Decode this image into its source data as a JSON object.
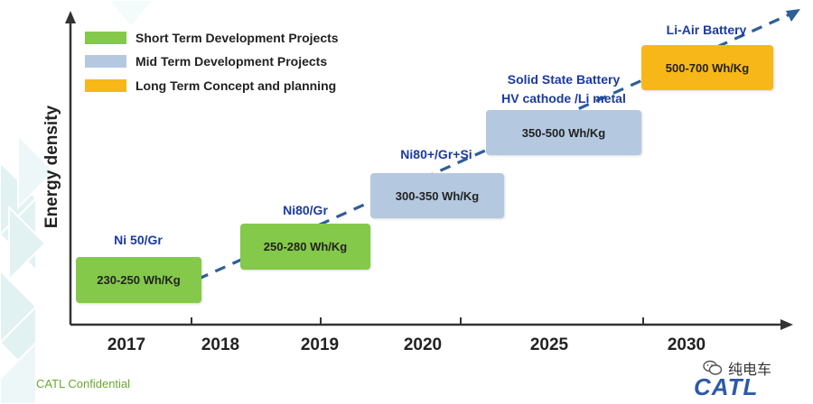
{
  "legend": [
    {
      "label": "Short Term Development Projects",
      "color": "#84c94a"
    },
    {
      "label": "Mid Term Development Projects",
      "color": "#b4c8e0"
    },
    {
      "label": "Long Term Concept and planning",
      "color": "#f7b718"
    }
  ],
  "axis": {
    "y_label": "Energy density"
  },
  "years": [
    "2017",
    "2018",
    "2019",
    "2020",
    "2025",
    "2030"
  ],
  "stages": [
    {
      "chemistry": "Ni 50/Gr",
      "energy": "230-250 Wh/Kg",
      "term": "short"
    },
    {
      "chemistry": "Ni80/Gr",
      "energy": "250-280 Wh/Kg",
      "term": "short"
    },
    {
      "chemistry": "Ni80+/Gr+Si",
      "energy": "300-350 Wh/Kg",
      "term": "mid"
    },
    {
      "chemistry_line1": "Solid State Battery",
      "chemistry_line2": "HV cathode /Li metal",
      "energy": "350-500 Wh/Kg",
      "term": "mid"
    },
    {
      "chemistry": "Li-Air Battery",
      "energy": "500-700 Wh/Kg",
      "term": "long"
    }
  ],
  "footer": {
    "confidential": "CATL Confidential",
    "wechat_label": "纯电车",
    "logo": "CATL"
  },
  "colors": {
    "trend_arrow": "#2e5f97",
    "axis": "#333333",
    "background_pattern": "#d8eef0"
  }
}
